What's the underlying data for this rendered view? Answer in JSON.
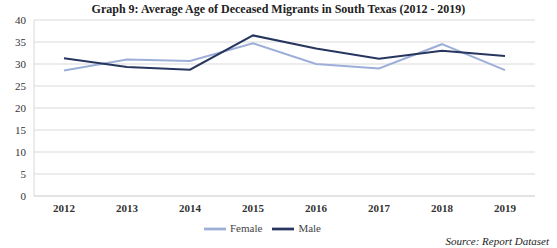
{
  "chart_data": {
    "type": "line",
    "title": "Graph 9: Average Age of Deceased Migrants in South Texas (2012 - 2019)",
    "annotations": [
      "Source: Report Dataset"
    ],
    "categories": [
      "2012",
      "2013",
      "2014",
      "2015",
      "2016",
      "2017",
      "2018",
      "2019"
    ],
    "series": [
      {
        "name": "Female",
        "color": "#9dafd9",
        "values": [
          28.5,
          31,
          30.7,
          34.7,
          30,
          29,
          34.5,
          28.6
        ]
      },
      {
        "name": "Male",
        "color": "#26365f",
        "values": [
          31.3,
          29.3,
          28.7,
          36.5,
          33.5,
          31.2,
          33,
          31.8
        ]
      }
    ],
    "ylim": [
      0,
      40
    ],
    "yticks": [
      0,
      5,
      10,
      15,
      20,
      25,
      30,
      35,
      40
    ],
    "grid": true,
    "legend": "bottom"
  }
}
